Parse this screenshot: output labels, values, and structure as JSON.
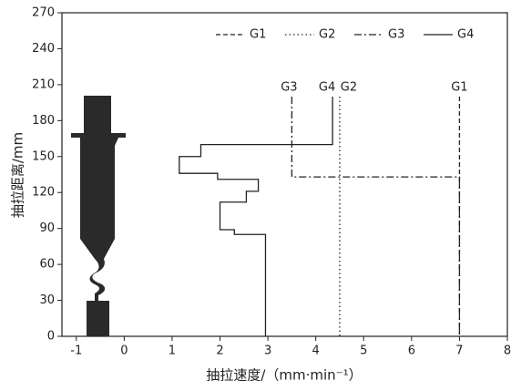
{
  "chart_data": {
    "type": "line",
    "xlabel": "抽拉速度/（mm·min⁻¹）",
    "ylabel": "抽拉距离/mm",
    "xlim": [
      -1.3,
      8
    ],
    "xticks": [
      -1,
      0,
      1,
      2,
      3,
      4,
      5,
      6,
      7,
      8
    ],
    "ylim": [
      0,
      270
    ],
    "yticks": [
      0,
      30,
      60,
      90,
      120,
      150,
      180,
      210,
      240,
      270
    ],
    "legend": "top-right",
    "series": [
      {
        "name": "G1",
        "color": "#222222",
        "linestyle": "dashed",
        "x": [
          7,
          7
        ],
        "values": [
          200,
          0
        ]
      },
      {
        "name": "G2",
        "color": "#222222",
        "linestyle": "dotted",
        "x": [
          4.5,
          4.5
        ],
        "values": [
          200,
          0
        ]
      },
      {
        "name": "G3",
        "color": "#222222",
        "linestyle": "dashdot",
        "x": [
          3.5,
          3.5,
          7,
          7
        ],
        "values": [
          200,
          133,
          133,
          0
        ]
      },
      {
        "name": "G4",
        "color": "#222222",
        "linestyle": "solid",
        "x": [
          4.35,
          4.35,
          1.6,
          1.6,
          1.15,
          1.15,
          1.95,
          1.95,
          2.8,
          2.8,
          2.55,
          2.55,
          2.0,
          2.0,
          2.3,
          2.3,
          2.95,
          2.95
        ],
        "values": [
          200,
          160,
          160,
          150,
          150,
          136,
          136,
          131,
          131,
          121,
          121,
          112,
          112,
          89,
          89,
          85,
          85,
          0
        ]
      }
    ]
  }
}
